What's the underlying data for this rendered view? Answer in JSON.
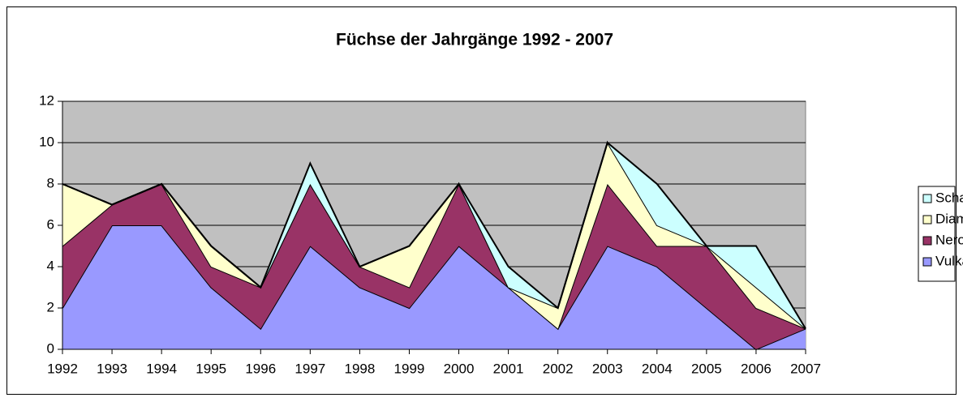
{
  "chart_data": {
    "type": "stacked_area",
    "title": "Füchse der Jahrgänge 1992 - 2007",
    "categories": [
      "1992",
      "1993",
      "1994",
      "1995",
      "1996",
      "1997",
      "1998",
      "1999",
      "2000",
      "2001",
      "2002",
      "2003",
      "2004",
      "2005",
      "2006",
      "2007"
    ],
    "series": [
      {
        "name": "Vulkan",
        "color": "#9999ff",
        "values": [
          2,
          6,
          6,
          3,
          1,
          5,
          3,
          2,
          5,
          3,
          1,
          5,
          4,
          2,
          0,
          1
        ]
      },
      {
        "name": "Nero",
        "color": "#993366",
        "values": [
          3,
          1,
          2,
          1,
          2,
          3,
          1,
          1,
          3,
          0,
          0,
          3,
          1,
          3,
          2,
          0
        ]
      },
      {
        "name": "Diamant",
        "color": "#ffffcc",
        "values": [
          3,
          0,
          0,
          1,
          0,
          0,
          0,
          2,
          0,
          0,
          1,
          2,
          1,
          0,
          1,
          0
        ]
      },
      {
        "name": "Schaunitz",
        "color": "#ccffff",
        "values": [
          0,
          0,
          0,
          0,
          0,
          1,
          0,
          0,
          0,
          1,
          0,
          0,
          2,
          0,
          2,
          0
        ]
      }
    ],
    "ylim": [
      0,
      12
    ],
    "yticks": [
      0,
      2,
      4,
      6,
      8,
      10,
      12
    ],
    "grid": true,
    "plot_background": "#c0c0c0",
    "legend": "right"
  }
}
